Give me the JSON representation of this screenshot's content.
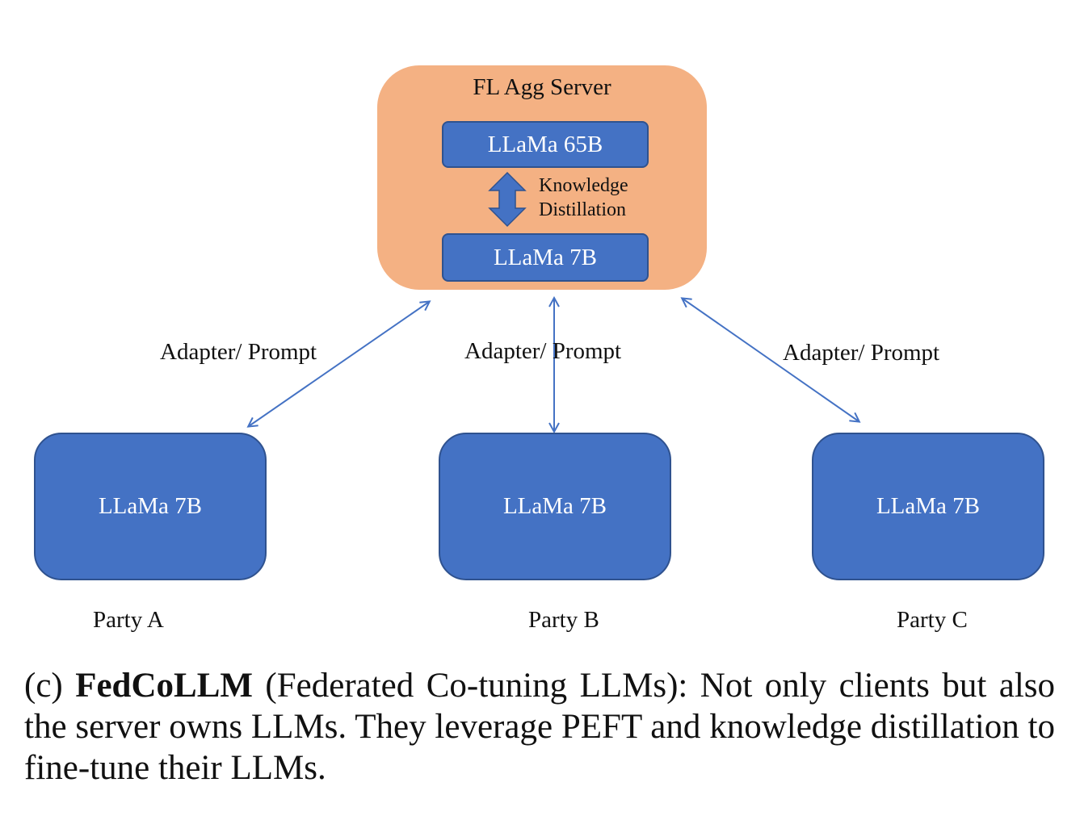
{
  "server": {
    "title": "FL Agg Server",
    "teacher_model": "LLaMa 65B",
    "student_model": "LLaMa 7B",
    "kd_label_line1": "Knowledge",
    "kd_label_line2": "Distillation"
  },
  "edges": [
    {
      "label": "Adapter/ Prompt"
    },
    {
      "label": "Adapter/ Prompt"
    },
    {
      "label": "Adapter/ Prompt"
    }
  ],
  "parties": [
    {
      "model": "LLaMa 7B",
      "name": "Party A"
    },
    {
      "model": "LLaMa 7B",
      "name": "Party B"
    },
    {
      "model": "LLaMa 7B",
      "name": "Party C"
    }
  ],
  "caption": {
    "prefix": "(c)",
    "bold": "FedCoLLM",
    "rest": "(Federated Co-tuning LLMs): Not only clients but also the server owns LLMs.  They leverage PEFT and knowledge distillation to fine-tune their LLMs."
  },
  "colors": {
    "server_fill": "#f4b183",
    "model_fill": "#4472c4",
    "arrow": "#4472c4"
  }
}
